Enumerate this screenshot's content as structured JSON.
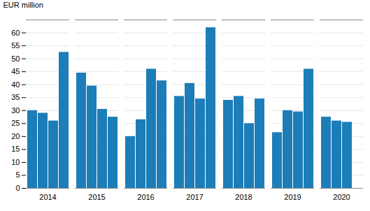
{
  "chart_data": {
    "type": "bar",
    "categories": [
      "2014",
      "2015",
      "2016",
      "2017",
      "2018",
      "2019",
      "2020"
    ],
    "series": [
      {
        "color": "#1c7db8",
        "values": [
          30.0,
          44.5,
          20.0,
          35.5,
          34.0,
          21.5,
          27.5
        ]
      },
      {
        "color": "#1c7db8",
        "values": [
          29.0,
          39.5,
          26.5,
          40.5,
          35.5,
          30.0,
          26.0
        ]
      },
      {
        "color": "#1c7db8",
        "values": [
          26.0,
          30.5,
          46.0,
          34.5,
          25.0,
          29.5,
          25.5
        ]
      },
      {
        "color": "#1c7db8",
        "values": [
          52.5,
          27.5,
          41.5,
          62.0,
          34.5,
          46.0,
          null
        ]
      }
    ],
    "ylabel": "EUR million",
    "ylim": [
      0,
      65
    ],
    "yticks": [
      0,
      5,
      10,
      15,
      20,
      25,
      30,
      35,
      40,
      45,
      50,
      55,
      60
    ],
    "grid": true
  }
}
